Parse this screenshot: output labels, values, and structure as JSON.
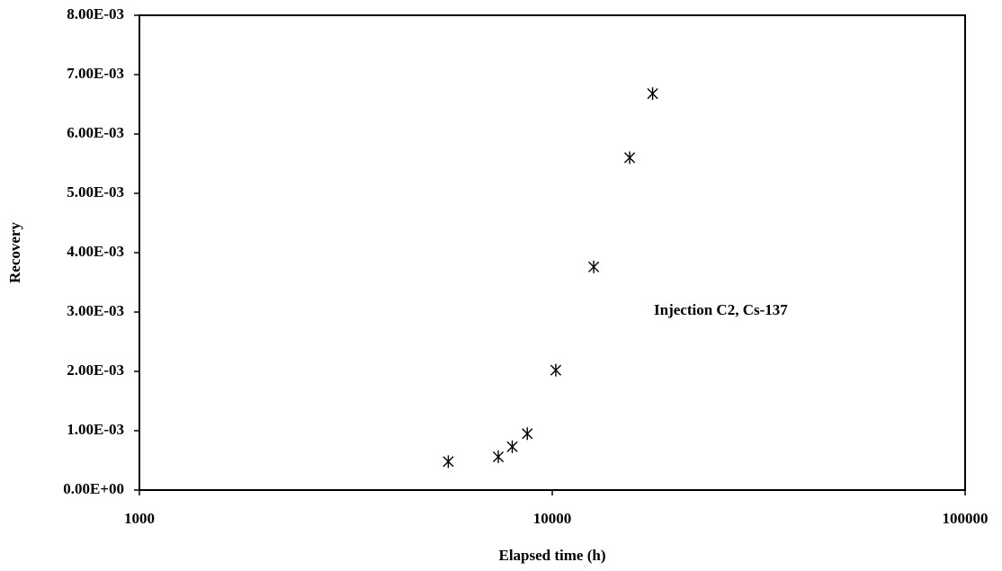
{
  "chart_data": {
    "type": "scatter",
    "x_label": "Elapsed time (h)",
    "y_label": "Recovery",
    "annotation": "Injection C2, Cs-137",
    "xscale": "log",
    "marker": "asterisk",
    "color": "#000000",
    "x": [
      5600,
      7400,
      8000,
      8700,
      10200,
      12600,
      15400,
      17500
    ],
    "values": [
      0.00048,
      0.00056,
      0.00073,
      0.00095,
      0.00202,
      0.00376,
      0.0056,
      0.00668
    ],
    "xlim": [
      1000,
      100000
    ],
    "xticks": [
      1000,
      10000,
      100000
    ],
    "ylim": [
      0,
      0.008
    ],
    "yticks": [
      {
        "value": 0,
        "label": "0.00E+00"
      },
      {
        "value": 0.001,
        "label": "1.00E-03"
      },
      {
        "value": 0.002,
        "label": "2.00E-03"
      },
      {
        "value": 0.003,
        "label": "3.00E-03"
      },
      {
        "value": 0.004,
        "label": "4.00E-03"
      },
      {
        "value": 0.005,
        "label": "5.00E-03"
      },
      {
        "value": 0.006,
        "label": "6.00E-03"
      },
      {
        "value": 0.007,
        "label": "7.00E-03"
      },
      {
        "value": 0.008,
        "label": "8.00E-03"
      }
    ],
    "grid": false
  }
}
